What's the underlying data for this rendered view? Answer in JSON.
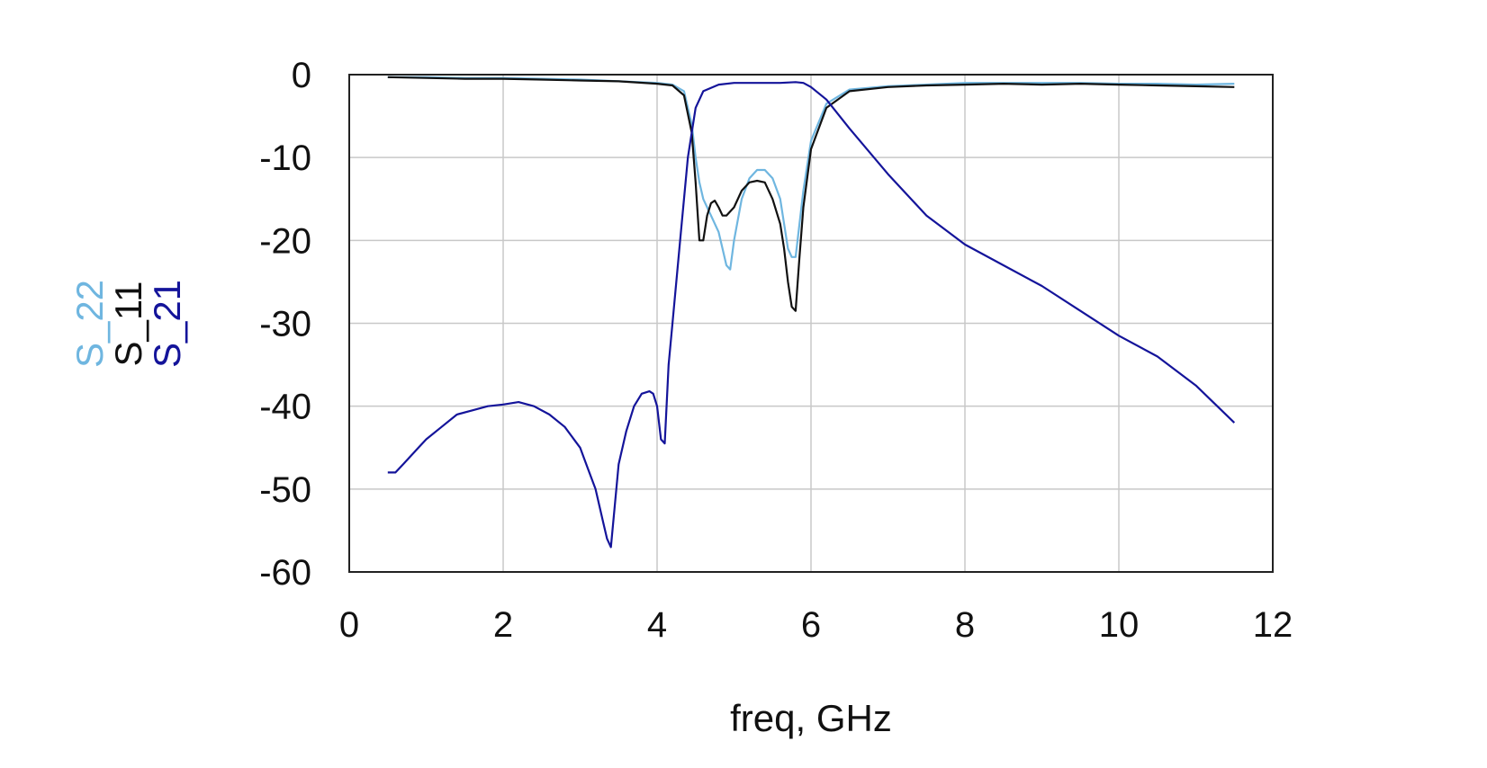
{
  "chart_data": {
    "type": "line",
    "xlabel": "freq, GHz",
    "ylabel_entries": [
      {
        "name": "S_22",
        "color": "#6fb6e0"
      },
      {
        "name": "S_11",
        "color": "#111111"
      },
      {
        "name": "S_21",
        "color": "#14149a"
      }
    ],
    "xlim": [
      0,
      12
    ],
    "ylim": [
      -60,
      0
    ],
    "xticks": [
      0,
      2,
      4,
      6,
      8,
      10,
      12
    ],
    "yticks": [
      0,
      -10,
      -20,
      -30,
      -40,
      -50,
      -60
    ],
    "grid": true,
    "series": [
      {
        "name": "S_21",
        "color": "#14149a",
        "x": [
          0.5,
          0.6,
          0.7,
          0.8,
          0.9,
          1.0,
          1.2,
          1.4,
          1.6,
          1.8,
          2.0,
          2.2,
          2.4,
          2.6,
          2.8,
          3.0,
          3.1,
          3.2,
          3.3,
          3.35,
          3.4,
          3.45,
          3.5,
          3.6,
          3.7,
          3.8,
          3.9,
          3.95,
          4.0,
          4.05,
          4.1,
          4.15,
          4.2,
          4.3,
          4.4,
          4.5,
          4.6,
          4.8,
          5.0,
          5.2,
          5.4,
          5.6,
          5.8,
          5.9,
          6.0,
          6.2,
          6.5,
          7.0,
          7.5,
          8.0,
          8.5,
          9.0,
          9.5,
          10.0,
          10.5,
          11.0,
          11.5
        ],
        "y": [
          -48,
          -48,
          -47,
          -46,
          -45,
          -44,
          -42.5,
          -41,
          -40.5,
          -40,
          -39.8,
          -39.5,
          -40,
          -41,
          -42.5,
          -45,
          -47.5,
          -50,
          -54,
          -56,
          -57,
          -52,
          -47,
          -43,
          -40,
          -38.5,
          -38.2,
          -38.5,
          -40,
          -44,
          -44.5,
          -35,
          -30,
          -20,
          -10,
          -4,
          -2,
          -1.2,
          -1.0,
          -1.0,
          -1.0,
          -1.0,
          -0.9,
          -1.0,
          -1.5,
          -3,
          -6.5,
          -12,
          -17,
          -20.5,
          -23,
          -25.5,
          -28.5,
          -31.5,
          -34,
          -37.5,
          -42
        ]
      },
      {
        "name": "S_11",
        "color": "#111111",
        "x": [
          0.5,
          1.0,
          1.5,
          2.0,
          2.5,
          3.0,
          3.5,
          4.0,
          4.2,
          4.35,
          4.45,
          4.5,
          4.55,
          4.6,
          4.65,
          4.7,
          4.75,
          4.8,
          4.85,
          4.9,
          5.0,
          5.1,
          5.2,
          5.3,
          5.4,
          5.5,
          5.6,
          5.65,
          5.7,
          5.75,
          5.8,
          5.85,
          5.9,
          6.0,
          6.2,
          6.5,
          7.0,
          7.5,
          8.0,
          8.5,
          9.0,
          9.5,
          10.0,
          10.5,
          11.0,
          11.5
        ],
        "y": [
          -0.3,
          -0.4,
          -0.5,
          -0.5,
          -0.6,
          -0.7,
          -0.8,
          -1.1,
          -1.3,
          -2.5,
          -7,
          -13,
          -20,
          -20,
          -17,
          -15.5,
          -15.2,
          -16,
          -17,
          -17,
          -16,
          -14,
          -13,
          -12.8,
          -13,
          -15,
          -18,
          -21,
          -25,
          -28,
          -28.5,
          -22,
          -16,
          -9,
          -4,
          -2,
          -1.5,
          -1.3,
          -1.2,
          -1.1,
          -1.2,
          -1.1,
          -1.2,
          -1.3,
          -1.4,
          -1.5
        ]
      },
      {
        "name": "S_22",
        "color": "#6fb6e0",
        "x": [
          0.5,
          1.0,
          1.5,
          2.0,
          2.5,
          3.0,
          3.5,
          4.0,
          4.2,
          4.35,
          4.45,
          4.5,
          4.55,
          4.6,
          4.7,
          4.8,
          4.85,
          4.9,
          4.95,
          5.0,
          5.1,
          5.2,
          5.3,
          5.4,
          5.5,
          5.6,
          5.65,
          5.7,
          5.75,
          5.8,
          5.85,
          5.9,
          6.0,
          6.2,
          6.5,
          7.0,
          7.5,
          8.0,
          8.5,
          9.0,
          9.5,
          10.0,
          10.5,
          11.0,
          11.5
        ],
        "y": [
          -0.3,
          -0.3,
          -0.4,
          -0.4,
          -0.5,
          -0.6,
          -0.8,
          -1.0,
          -1.2,
          -2,
          -6,
          -10,
          -13,
          -15,
          -17,
          -19,
          -21,
          -23,
          -23.5,
          -20,
          -15,
          -12.5,
          -11.5,
          -11.5,
          -12.5,
          -15,
          -18,
          -21,
          -22,
          -22,
          -18,
          -14,
          -8,
          -3.5,
          -1.8,
          -1.4,
          -1.2,
          -1.0,
          -1.0,
          -1.0,
          -1.0,
          -1.1,
          -1.1,
          -1.2,
          -1.1
        ]
      }
    ]
  }
}
